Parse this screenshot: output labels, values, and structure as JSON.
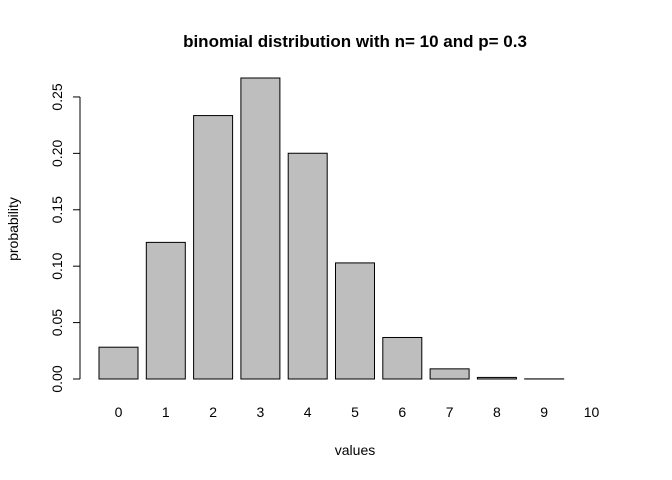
{
  "chart_data": {
    "type": "bar",
    "title": "binomial distribution with n= 10 and p= 0.3",
    "xlabel": "values",
    "ylabel": "probability",
    "categories": [
      "0",
      "1",
      "2",
      "3",
      "4",
      "5",
      "6",
      "7",
      "8",
      "9",
      "10"
    ],
    "values": [
      0.0282,
      0.1211,
      0.2335,
      0.2668,
      0.2001,
      0.1029,
      0.0368,
      0.009,
      0.0014,
      0.0001,
      0.0
    ],
    "yticks": [
      "0.00",
      "0.05",
      "0.10",
      "0.15",
      "0.20",
      "0.25"
    ],
    "ytick_values": [
      0,
      0.05,
      0.1,
      0.15,
      0.2,
      0.25
    ],
    "ylim": [
      0,
      0.2668
    ],
    "bar_color": "#bebebe",
    "grid": false,
    "legend": "none"
  }
}
